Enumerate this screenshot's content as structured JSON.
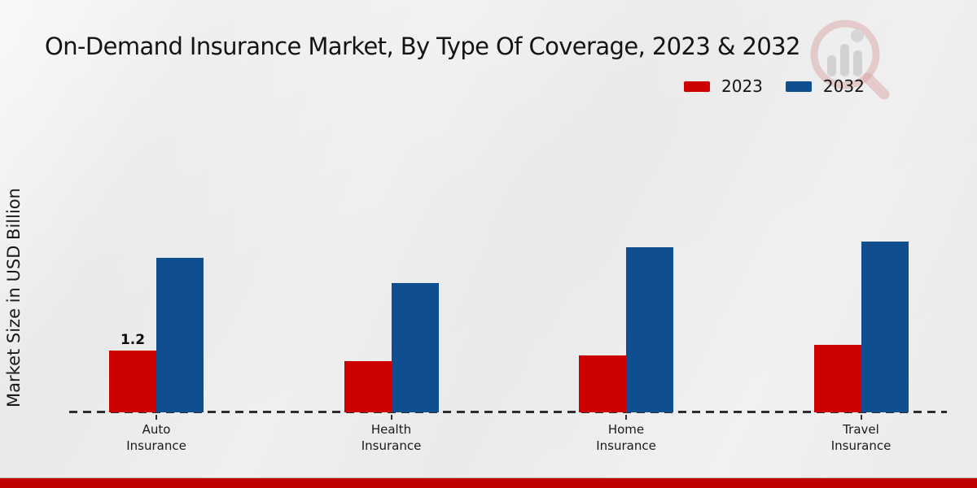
{
  "page": {
    "background_color": "#ebebeb",
    "footer_color": "#c00000",
    "footer_border_color": "#b9b9b9"
  },
  "chart": {
    "title": "On-Demand Insurance Market, By Type Of Coverage, 2023 & 2032",
    "ylabel": "Market Size in USD Billion",
    "legend": [
      {
        "label": "2023",
        "color": "#cc0000"
      },
      {
        "label": "2032",
        "color": "#0f4e8f"
      }
    ]
  },
  "chart_data": {
    "type": "bar",
    "title": "On-Demand Insurance Market, By Type Of Coverage, 2023 & 2032",
    "xlabel": "",
    "ylabel": "Market Size in USD Billion",
    "categories": [
      "Auto Insurance",
      "Health Insurance",
      "Home Insurance",
      "Travel Insurance"
    ],
    "categories_lines": [
      [
        "Auto",
        "Insurance"
      ],
      [
        "Health",
        "Insurance"
      ],
      [
        "Home",
        "Insurance"
      ],
      [
        "Travel",
        "Insurance"
      ]
    ],
    "series": [
      {
        "name": "2023",
        "color": "#cc0000",
        "values": [
          1.2,
          1.0,
          1.1,
          1.3
        ]
      },
      {
        "name": "2032",
        "color": "#0f4e8f",
        "values": [
          3.0,
          2.5,
          3.2,
          3.3
        ]
      }
    ],
    "bar_labels": {
      "series": "2023",
      "values": [
        "1.2",
        "",
        "",
        ""
      ]
    },
    "ylim": [
      0,
      3.5
    ],
    "grid": false,
    "legend_position": "top-right",
    "x_axis_style": "dashed-baseline",
    "value_axis_ticks_visible": false
  },
  "watermark": {
    "name": "magnifier-bar-chart-logo"
  }
}
